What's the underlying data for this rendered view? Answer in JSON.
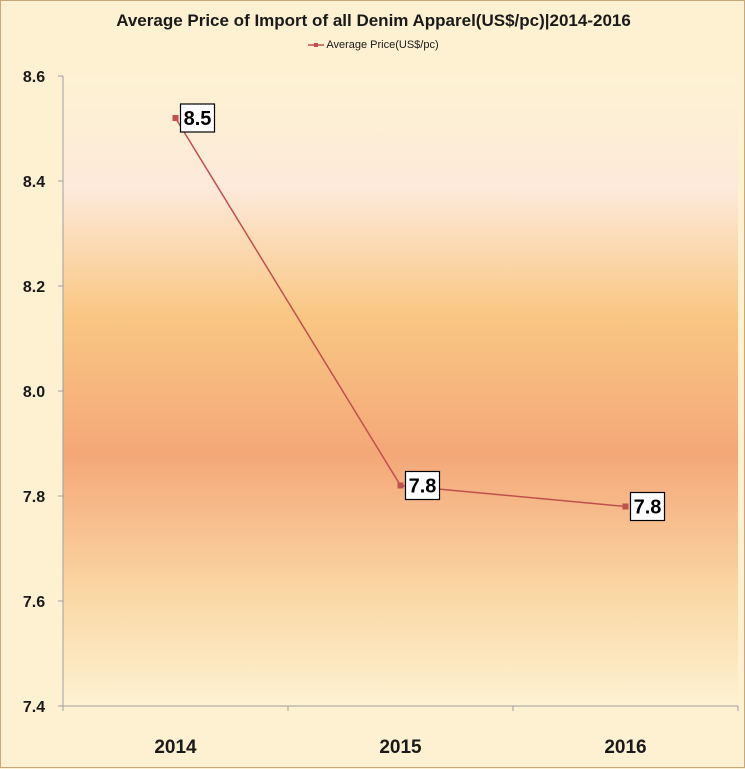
{
  "chart_data": {
    "type": "line",
    "title": "Average Price of Import of all Denim Apparel(US$/pc)|2014-2016",
    "categories": [
      "2014",
      "2015",
      "2016"
    ],
    "series": [
      {
        "name": "Average Price(US$/pc)",
        "values": [
          8.52,
          7.82,
          7.78
        ],
        "data_labels": [
          "8.5",
          "7.8",
          "7.8"
        ],
        "color": "#c0504d"
      }
    ],
    "yticks": [
      "8.6",
      "8.4",
      "8.2",
      "8.0",
      "7.8",
      "7.6",
      "7.4"
    ],
    "ylim": [
      7.4,
      8.6
    ],
    "xlabel": "",
    "ylabel": "",
    "grid": false,
    "legend_position": "top",
    "background_gradient": [
      "#fdf1d2",
      "#fde7c8",
      "#f8c07a",
      "#f4a673",
      "#fbd8a8",
      "#fdf3d6"
    ]
  }
}
